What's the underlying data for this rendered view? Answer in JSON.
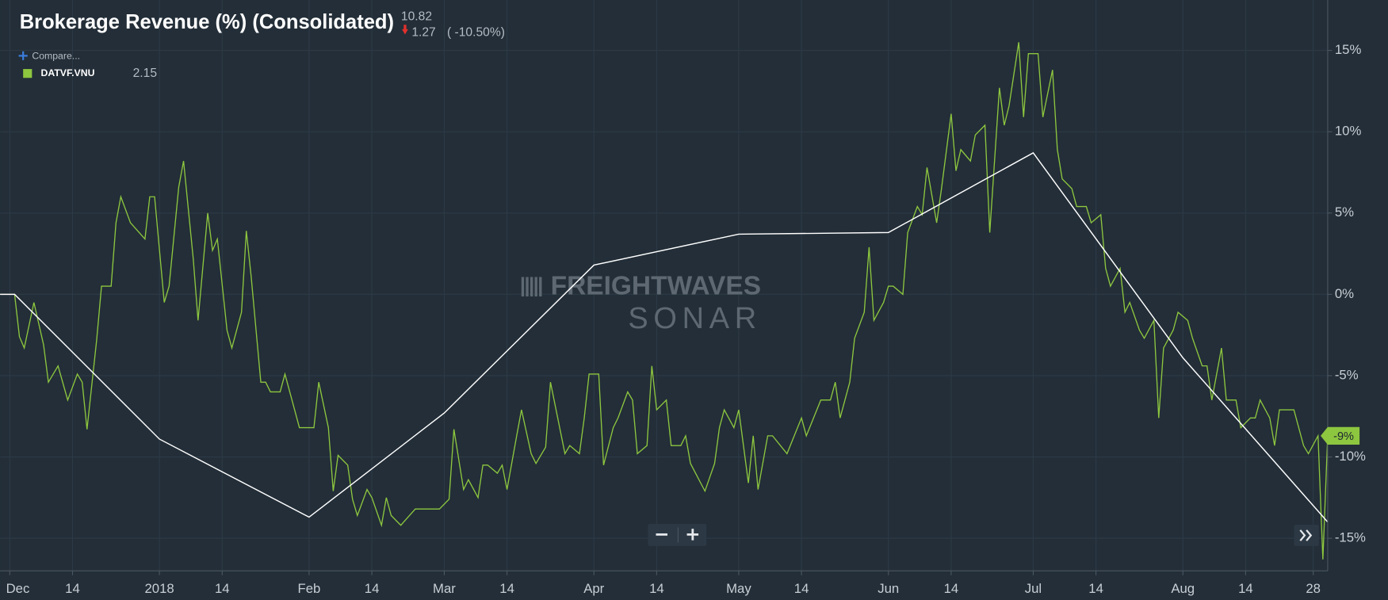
{
  "chart_data": {
    "type": "line",
    "title": "Brokerage Revenue (%) (Consolidated)",
    "last_value": "10.82",
    "change": "1.27",
    "change_pct": "( -10.50%)",
    "compare": "Compare...",
    "watermark": [
      "FREIGHTWAVES",
      "SONAR"
    ],
    "grid": true,
    "xlim": [
      -2,
      273
    ],
    "ylim": [
      -17,
      18.1
    ],
    "xticks": [
      {
        "value": 0,
        "label": "Dec"
      },
      {
        "value": 13,
        "label": "14"
      },
      {
        "value": 31,
        "label": "2018"
      },
      {
        "value": 44,
        "label": "14"
      },
      {
        "value": 62,
        "label": "Feb"
      },
      {
        "value": 75,
        "label": "14"
      },
      {
        "value": 90,
        "label": "Mar"
      },
      {
        "value": 103,
        "label": "14"
      },
      {
        "value": 121,
        "label": "Apr"
      },
      {
        "value": 134,
        "label": "14"
      },
      {
        "value": 151,
        "label": "May"
      },
      {
        "value": 164,
        "label": "14"
      },
      {
        "value": 182,
        "label": "Jun"
      },
      {
        "value": 195,
        "label": "14"
      },
      {
        "value": 212,
        "label": "Jul"
      },
      {
        "value": 225,
        "label": "14"
      },
      {
        "value": 243,
        "label": "Aug"
      },
      {
        "value": 256,
        "label": "14"
      },
      {
        "value": 270,
        "label": "28"
      }
    ],
    "yticks": [
      {
        "value": 15,
        "label": "15%"
      },
      {
        "value": 10,
        "label": "10%"
      },
      {
        "value": 5,
        "label": "5%"
      },
      {
        "value": 0,
        "label": "0%"
      },
      {
        "value": -5,
        "label": "-5%"
      },
      {
        "value": -10,
        "label": "-10%"
      },
      {
        "value": -15,
        "label": "-15%"
      }
    ],
    "series": [
      {
        "name": "DATVF.VNU",
        "legend_value": "2.15",
        "color": "#8dc63f",
        "x": [
          -2,
          1,
          2,
          3,
          5,
          7,
          8,
          10,
          12,
          14,
          15,
          16,
          18,
          19,
          21,
          22,
          23,
          25,
          28,
          29,
          30,
          32,
          33,
          35,
          36,
          38,
          39,
          41,
          42,
          43,
          45,
          46,
          48,
          49,
          50,
          52,
          53,
          54,
          56,
          57,
          60,
          63,
          64,
          66,
          67,
          68,
          70,
          71,
          72,
          74,
          75,
          77,
          78,
          79,
          81,
          84,
          87,
          89,
          91,
          92,
          94,
          95,
          97,
          98,
          99,
          101,
          102,
          103,
          105,
          106,
          108,
          109,
          111,
          112,
          115,
          116,
          118,
          119,
          120,
          122,
          123,
          125,
          126,
          128,
          129,
          130,
          132,
          133,
          134,
          136,
          137,
          139,
          140,
          141,
          144,
          146,
          147,
          148,
          150,
          151,
          153,
          154,
          155,
          157,
          158,
          161,
          164,
          165,
          168,
          170,
          171,
          172,
          174,
          175,
          177,
          178,
          179,
          181,
          182,
          183,
          185,
          186,
          188,
          189,
          190,
          192,
          193,
          195,
          196,
          197,
          199,
          200,
          202,
          203,
          205,
          206,
          207,
          209,
          210,
          211,
          213,
          214,
          216,
          217,
          218,
          220,
          221,
          223,
          224,
          226,
          227,
          228,
          230,
          231,
          232,
          234,
          235,
          237,
          238,
          239,
          241,
          242,
          244,
          245,
          247,
          248,
          249,
          251,
          252,
          254,
          255,
          257,
          258,
          259,
          261,
          262,
          263,
          266,
          268,
          269,
          271,
          272,
          273
        ],
        "values": [
          0,
          0,
          -2.6,
          -3.3,
          -0.5,
          -3.1,
          -5.4,
          -4.4,
          -6.5,
          -4.9,
          -5.4,
          -8.3,
          -2.8,
          0.5,
          0.5,
          4.4,
          6.0,
          4.4,
          3.4,
          6.0,
          6.0,
          -0.5,
          0.5,
          6.6,
          8.2,
          2.2,
          -1.6,
          5.0,
          2.7,
          3.4,
          -2.2,
          -3.3,
          -1.1,
          3.9,
          1.1,
          -5.4,
          -5.4,
          -6.0,
          -6.0,
          -4.9,
          -8.2,
          -8.2,
          -5.4,
          -8.2,
          -12.1,
          -9.9,
          -10.5,
          -12.6,
          -13.6,
          -12.0,
          -12.5,
          -14.2,
          -12.5,
          -13.6,
          -14.2,
          -13.2,
          -13.2,
          -13.2,
          -12.6,
          -8.3,
          -12.0,
          -11.4,
          -12.5,
          -10.5,
          -10.5,
          -11.0,
          -10.5,
          -12.0,
          -8.7,
          -7.1,
          -9.8,
          -10.4,
          -9.4,
          -5.4,
          -9.8,
          -9.3,
          -9.8,
          -7.6,
          -4.9,
          -4.9,
          -10.5,
          -8.2,
          -7.6,
          -6.0,
          -6.5,
          -9.8,
          -9.3,
          -4.4,
          -7.1,
          -6.5,
          -9.3,
          -9.3,
          -8.7,
          -10.4,
          -12.1,
          -10.4,
          -8.2,
          -7.1,
          -8.2,
          -7.1,
          -11.6,
          -8.7,
          -12.0,
          -8.7,
          -8.7,
          -9.8,
          -7.6,
          -8.7,
          -6.5,
          -6.5,
          -5.4,
          -7.6,
          -5.4,
          -2.7,
          -1.1,
          2.9,
          -1.6,
          -0.5,
          0.5,
          0.5,
          0.0,
          3.8,
          5.4,
          4.9,
          7.8,
          4.4,
          6.5,
          11.1,
          7.6,
          8.9,
          8.2,
          9.8,
          10.4,
          3.8,
          12.7,
          10.4,
          11.6,
          15.5,
          10.9,
          14.8,
          14.8,
          10.9,
          13.8,
          8.9,
          7.1,
          6.5,
          5.4,
          5.4,
          4.4,
          4.9,
          1.6,
          0.5,
          1.6,
          -1.1,
          -0.5,
          -2.2,
          -2.7,
          -1.6,
          -7.6,
          -3.3,
          -2.2,
          -1.1,
          -1.6,
          -2.7,
          -4.4,
          -4.4,
          -6.5,
          -3.3,
          -6.5,
          -6.5,
          -8.2,
          -7.6,
          -7.6,
          -6.5,
          -7.6,
          -9.3,
          -7.1,
          -7.1,
          -9.3,
          -9.8,
          -8.7,
          -16.3,
          -8.7
        ],
        "end_tag": {
          "value": -8.7,
          "label": "-9%"
        }
      },
      {
        "color": "#ffffff",
        "x": [
          -2,
          1,
          31,
          62,
          90,
          121,
          151,
          182,
          212,
          243,
          273
        ],
        "values": [
          0,
          0,
          -8.9,
          -13.7,
          -7.3,
          1.8,
          3.7,
          3.8,
          8.7,
          -3.9,
          -14.0
        ]
      }
    ]
  }
}
